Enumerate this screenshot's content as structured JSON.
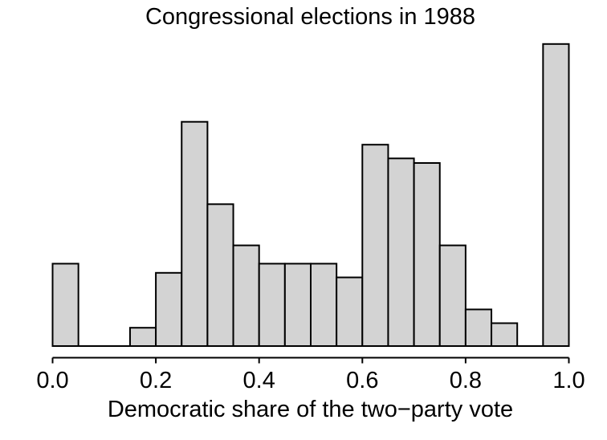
{
  "chart_data": {
    "type": "bar",
    "subtype": "histogram",
    "title": "Congressional elections in 1988",
    "xlabel": "Democratic share of the two−party vote",
    "ylabel": "",
    "xlim": [
      0.0,
      1.0
    ],
    "ylim": [
      0,
      66
    ],
    "grid": false,
    "legend": null,
    "y_axis_shown": false,
    "bin_start": 0.0,
    "bin_width": 0.05,
    "counts": [
      18,
      0,
      0,
      4,
      16,
      49,
      31,
      22,
      18,
      18,
      18,
      15,
      44,
      41,
      40,
      22,
      8,
      5,
      0,
      66
    ],
    "total": 435,
    "max_count": 66,
    "x_ticks": [
      {
        "value": 0.0,
        "label": "0.0"
      },
      {
        "value": 0.2,
        "label": "0.2"
      },
      {
        "value": 0.4,
        "label": "0.4"
      },
      {
        "value": 0.6,
        "label": "0.6"
      },
      {
        "value": 0.8,
        "label": "0.8"
      },
      {
        "value": 1.0,
        "label": "1.0"
      }
    ],
    "colors": {
      "bar_fill": "#d3d3d3",
      "bar_stroke": "#000000",
      "axis": "#000000",
      "text": "#000000",
      "background": "#ffffff"
    }
  }
}
